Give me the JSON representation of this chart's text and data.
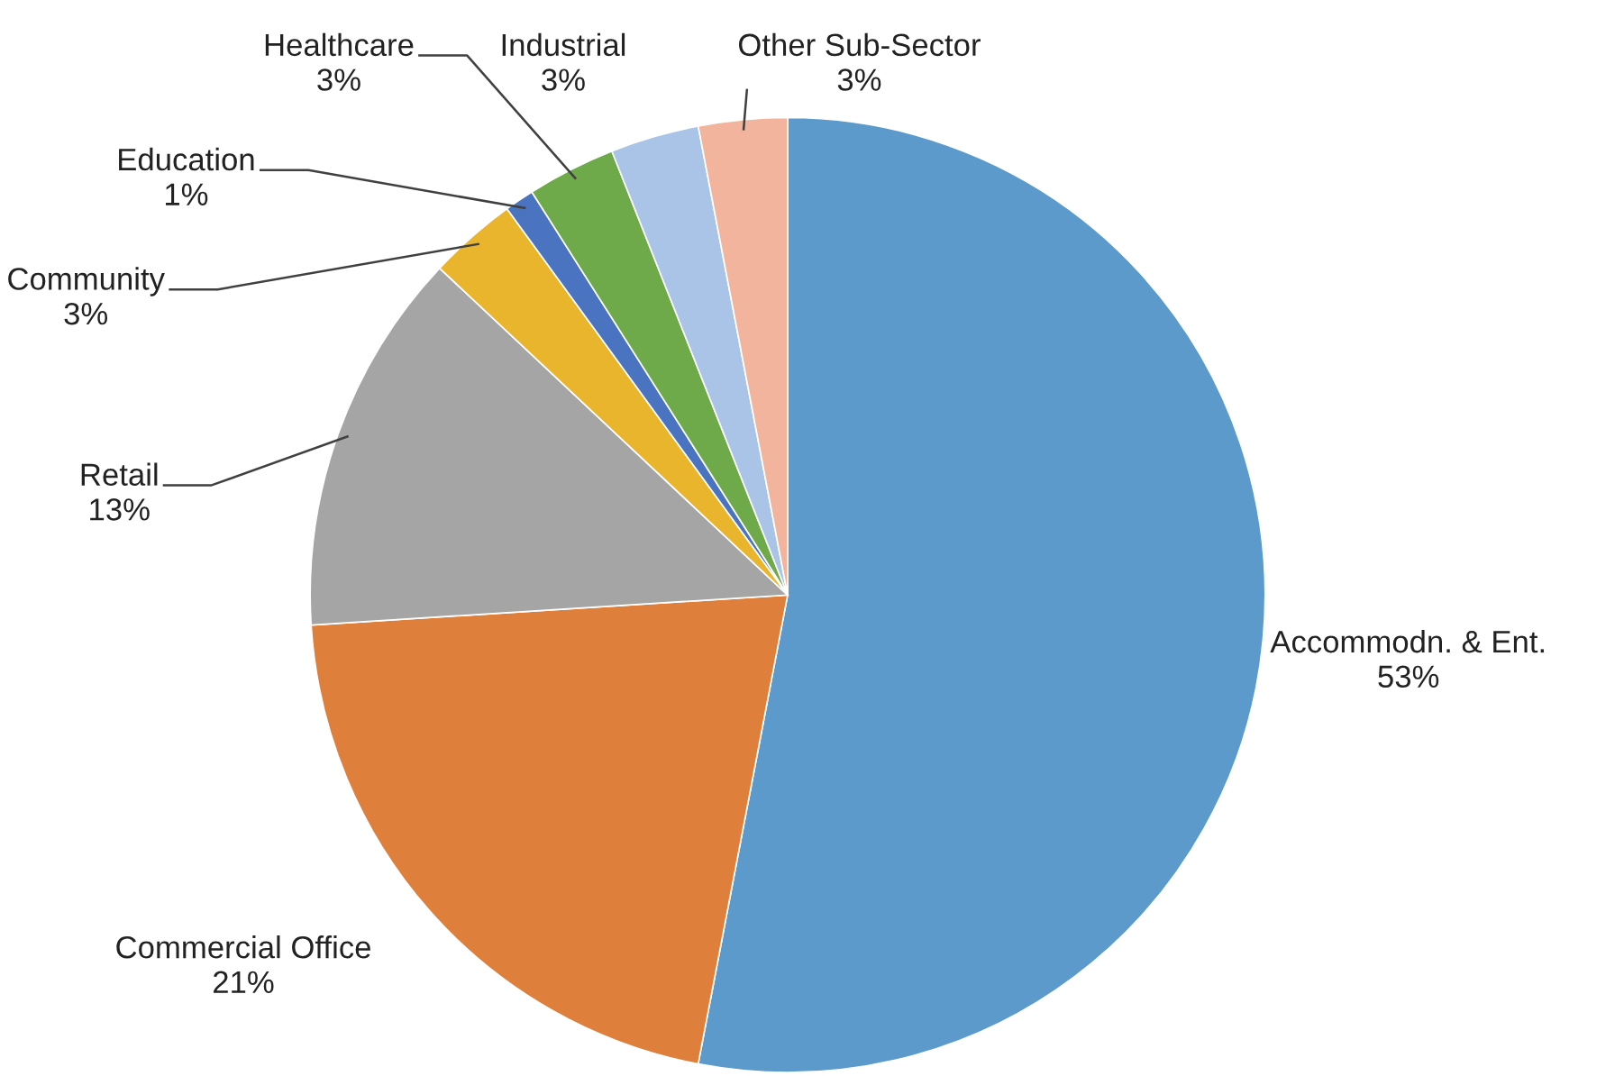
{
  "chart_data": {
    "type": "pie",
    "categories": [
      "Accommodn. & Ent.",
      "Commercial Office",
      "Retail",
      "Community",
      "Education",
      "Healthcare",
      "Industrial",
      "Other Sub-Sector"
    ],
    "values": [
      53,
      21,
      13,
      3,
      1,
      3,
      3,
      3
    ],
    "colors": [
      "#5b9acb",
      "#de7f3b",
      "#a5a5a5",
      "#e9b52d",
      "#4a74c0",
      "#6eaa4a",
      "#a9c4e6",
      "#f2b49d"
    ],
    "value_labels": [
      "53%",
      "21%",
      "13%",
      "3%",
      "1%",
      "3%",
      "3%",
      "3%"
    ],
    "legend": false
  }
}
